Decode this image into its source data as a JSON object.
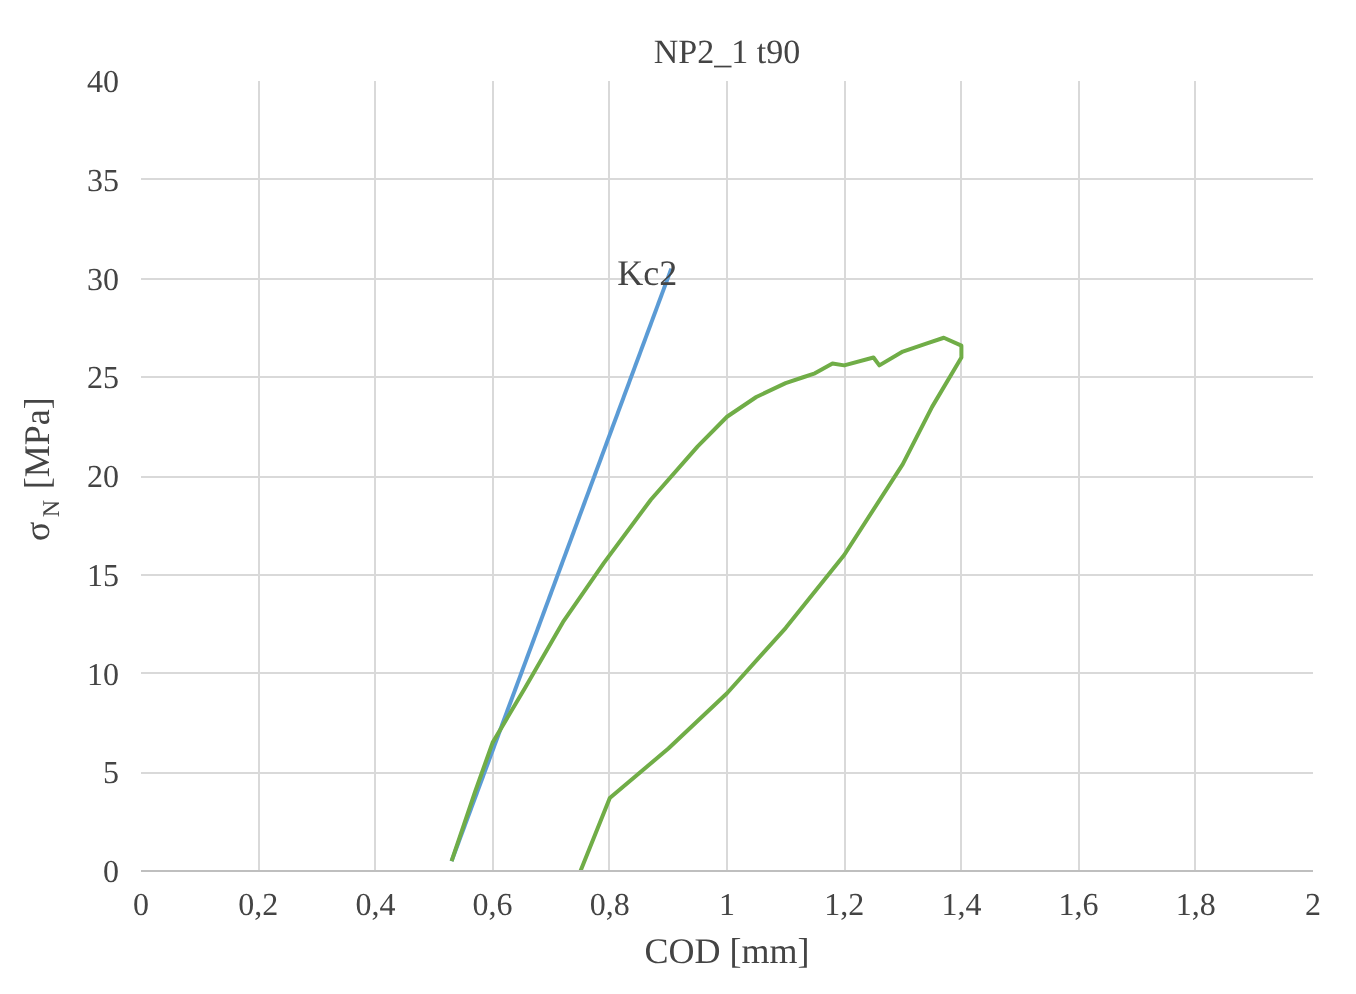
{
  "chart_data": {
    "type": "line",
    "title": "NP2_1 t90",
    "xlabel": "COD [mm]",
    "ylabel": "σ$_{N}$ [MPa]",
    "series": [
      {
        "color": "#5b9bd5",
        "x": [
          0.53,
          0.905
        ],
        "values": [
          0.5,
          30.5
        ]
      },
      {
        "color": "#70ad47",
        "x": [
          0.53,
          0.57,
          0.6,
          0.656,
          0.72,
          0.79,
          0.87,
          0.95,
          1.0,
          1.05,
          1.1,
          1.13,
          1.15,
          1.18,
          1.2,
          1.25,
          1.26,
          1.3,
          1.34,
          1.37,
          1.4,
          1.4,
          1.35,
          1.3,
          1.2,
          1.1,
          1.0,
          0.9,
          0.8,
          0.75
        ],
        "values": [
          0.5,
          4,
          6.5,
          9.3,
          12.6,
          15.6,
          18.8,
          21.5,
          23,
          24,
          24.7,
          25,
          25.2,
          25.7,
          25.6,
          26,
          25.6,
          26.3,
          26.7,
          27,
          26.6,
          26,
          23.5,
          20.6,
          16,
          12.3,
          9,
          6.2,
          3.7,
          0
        ]
      }
    ],
    "annotations": [
      "Kc2"
    ],
    "xlim": [
      0,
      2
    ],
    "xticks": [
      {
        "value": 0,
        "label": "0"
      },
      {
        "value": 0.2,
        "label": "0,2"
      },
      {
        "value": 0.4,
        "label": "0,4"
      },
      {
        "value": 0.6,
        "label": "0,6"
      },
      {
        "value": 0.8,
        "label": "0,8"
      },
      {
        "value": 1,
        "label": "1"
      },
      {
        "value": 1.2,
        "label": "1,2"
      },
      {
        "value": 1.4,
        "label": "1,4"
      },
      {
        "value": 1.6,
        "label": "1,6"
      },
      {
        "value": 1.8,
        "label": "1,8"
      },
      {
        "value": 2,
        "label": "2"
      }
    ],
    "ylim": [
      0,
      40
    ],
    "yticks": [
      0,
      5,
      10,
      15,
      20,
      25,
      30,
      35,
      40
    ],
    "grid": true,
    "marker": "none",
    "line_style": "solid"
  }
}
